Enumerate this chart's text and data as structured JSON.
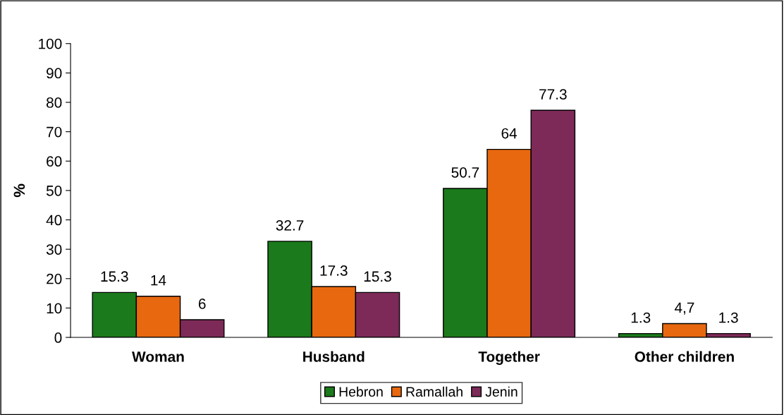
{
  "chart_data": {
    "type": "bar",
    "ylabel": "%",
    "categories": [
      "Woman",
      "Husband",
      "Together",
      "Other children"
    ],
    "series": [
      {
        "name": "Hebron",
        "color": "#1b7a1b",
        "values": [
          15.3,
          32.7,
          50.7,
          1.3
        ],
        "value_labels": [
          "15.3",
          "32.7",
          "50.7",
          "1.3"
        ]
      },
      {
        "name": "Ramallah",
        "color": "#e8680f",
        "values": [
          14,
          17.3,
          64,
          4.7
        ],
        "value_labels": [
          "14",
          "17.3",
          "64",
          "4,7"
        ]
      },
      {
        "name": "Jenin",
        "color": "#7d2a58",
        "values": [
          6,
          15.3,
          77.3,
          1.3
        ],
        "value_labels": [
          "6",
          "15.3",
          "77.3",
          "1.3"
        ]
      }
    ],
    "ylim": [
      0,
      100
    ],
    "yticks": [
      0,
      10,
      20,
      30,
      40,
      50,
      60,
      70,
      80,
      90,
      100
    ],
    "grid": false,
    "legend": "bottom"
  }
}
